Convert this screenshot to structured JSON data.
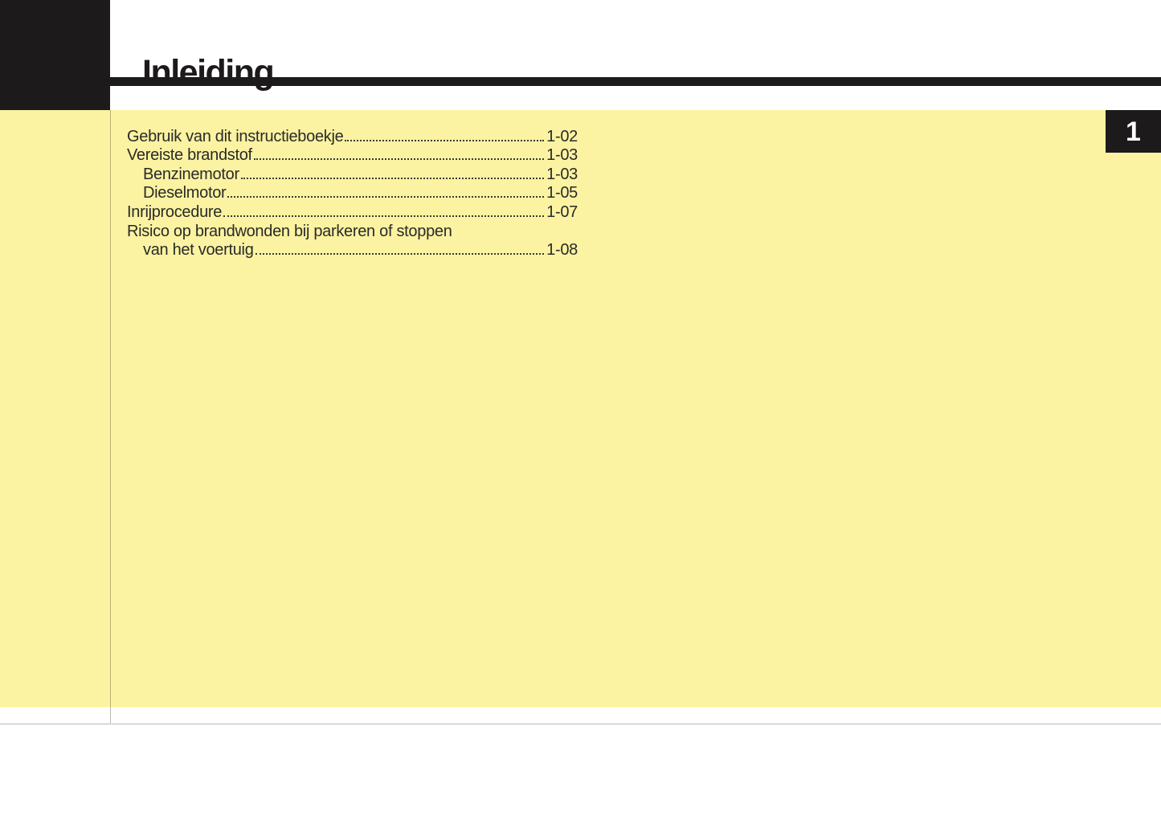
{
  "header": {
    "title": "Inleiding"
  },
  "chapter_tab": {
    "number": "1"
  },
  "toc": {
    "entries": [
      {
        "label": "Gebruik van dit instructieboekje",
        "page": "1-02",
        "indent": 0,
        "leader": true
      },
      {
        "label": "Vereiste brandstof",
        "page": "1-03",
        "indent": 0,
        "leader": true
      },
      {
        "label": "Benzinemotor",
        "page": "1-03",
        "indent": 1,
        "leader": true
      },
      {
        "label": "Dieselmotor",
        "page": "1-05",
        "indent": 1,
        "leader": true
      },
      {
        "label": "Inrijprocedure",
        "page": "1-07",
        "indent": 0,
        "leader": true
      },
      {
        "label": "Risico op brandwonden bij parkeren of stoppen",
        "page": "",
        "indent": 0,
        "leader": false
      },
      {
        "label": "van het voertuig",
        "page": "1-08",
        "indent": 1,
        "leader": true
      }
    ]
  },
  "colors": {
    "background_yellow": "#FBF3A2",
    "ink_black": "#1D1A1B",
    "text_dark": "#2B2A28",
    "rule_gray": "#DADADA"
  }
}
